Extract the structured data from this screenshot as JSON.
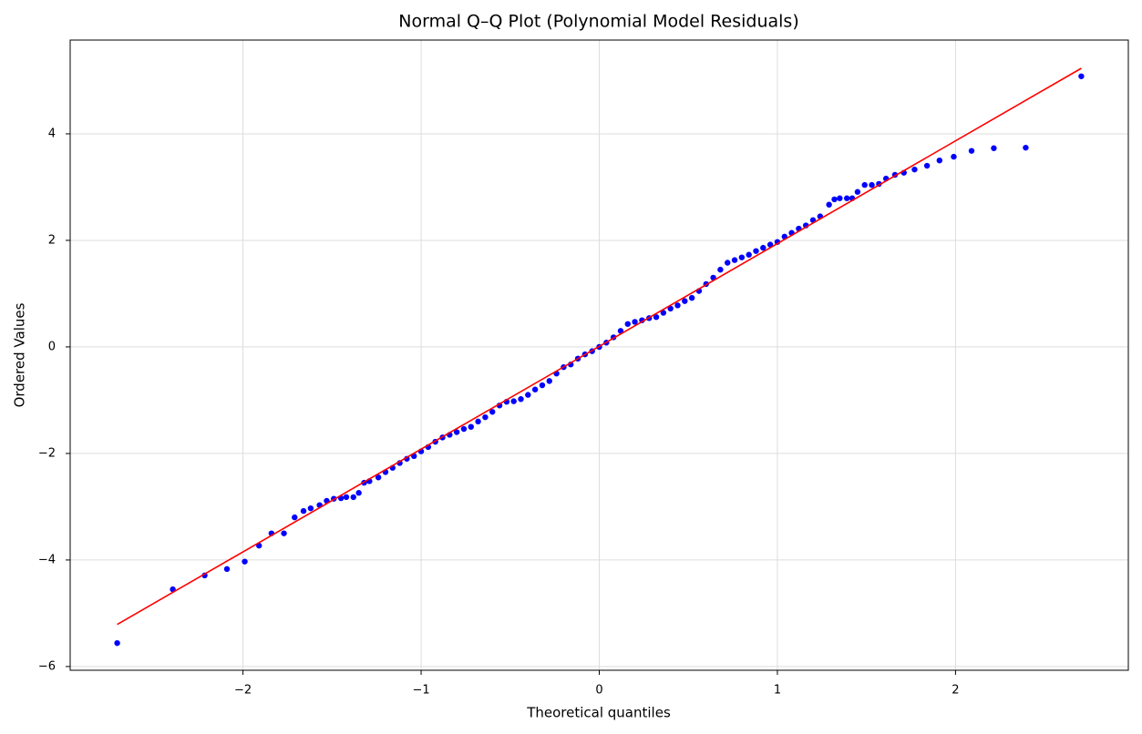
{
  "chart_data": {
    "type": "scatter",
    "title": "Normal Q–Q Plot (Polynomial Model Residuals)",
    "xlabel": "Theoretical quantiles",
    "ylabel": "Ordered Values",
    "color": "#0000ff",
    "x": [
      -2.706,
      -2.394,
      -2.215,
      -2.09,
      -1.99,
      -1.91,
      -1.84,
      -1.77,
      -1.71,
      -1.66,
      -1.62,
      -1.57,
      -1.53,
      -1.49,
      -1.45,
      -1.42,
      -1.38,
      -1.35,
      -1.32,
      -1.29,
      -1.24,
      -1.2,
      -1.16,
      -1.12,
      -1.08,
      -1.04,
      -1.0,
      -0.96,
      -0.92,
      -0.88,
      -0.84,
      -0.8,
      -0.76,
      -0.72,
      -0.68,
      -0.64,
      -0.6,
      -0.56,
      -0.52,
      -0.48,
      -0.44,
      -0.4,
      -0.36,
      -0.32,
      -0.28,
      -0.24,
      -0.2,
      -0.16,
      -0.12,
      -0.08,
      -0.04,
      0,
      0.04,
      0.08,
      0.12,
      0.16,
      0.2,
      0.24,
      0.28,
      0.32,
      0.36,
      0.4,
      0.44,
      0.48,
      0.52,
      0.56,
      0.6,
      0.64,
      0.68,
      0.72,
      0.76,
      0.8,
      0.84,
      0.88,
      0.92,
      0.96,
      1.0,
      1.04,
      1.08,
      1.12,
      1.16,
      1.2,
      1.24,
      1.29,
      1.32,
      1.35,
      1.39,
      1.42,
      1.45,
      1.49,
      1.53,
      1.57,
      1.61,
      1.66,
      1.71,
      1.77,
      1.84,
      1.91,
      1.99,
      2.09,
      2.215,
      2.394,
      2.706
    ],
    "values": [
      -5.56,
      -4.55,
      -4.29,
      -4.17,
      -4.03,
      -3.73,
      -3.5,
      -3.5,
      -3.2,
      -3.08,
      -3.03,
      -2.97,
      -2.89,
      -2.85,
      -2.84,
      -2.82,
      -2.82,
      -2.74,
      -2.55,
      -2.52,
      -2.45,
      -2.35,
      -2.27,
      -2.18,
      -2.1,
      -2.05,
      -1.96,
      -1.88,
      -1.78,
      -1.7,
      -1.65,
      -1.6,
      -1.54,
      -1.5,
      -1.4,
      -1.32,
      -1.22,
      -1.1,
      -1.03,
      -1.02,
      -0.98,
      -0.9,
      -0.8,
      -0.72,
      -0.64,
      -0.5,
      -0.38,
      -0.33,
      -0.22,
      -0.14,
      -0.08,
      0,
      0.08,
      0.18,
      0.3,
      0.43,
      0.47,
      0.5,
      0.54,
      0.56,
      0.64,
      0.72,
      0.78,
      0.86,
      0.92,
      1.05,
      1.18,
      1.3,
      1.45,
      1.58,
      1.63,
      1.68,
      1.73,
      1.8,
      1.86,
      1.92,
      1.97,
      2.07,
      2.14,
      2.22,
      2.28,
      2.38,
      2.45,
      2.67,
      2.77,
      2.79,
      2.79,
      2.79,
      2.91,
      3.04,
      3.04,
      3.06,
      3.16,
      3.23,
      3.27,
      3.33,
      3.4,
      3.5,
      3.57,
      3.68,
      3.73,
      3.74,
      5.08
    ],
    "line": {
      "color": "#ff0000",
      "x": [
        -2.706,
        2.706
      ],
      "values": [
        -5.21,
        5.23
      ]
    },
    "xlim": [
      -2.97,
      2.97
    ],
    "ylim": [
      -6.07,
      5.76
    ],
    "xticks": [
      {
        "value": -2,
        "label": "−2"
      },
      {
        "value": -1,
        "label": "−1"
      },
      0,
      1,
      2
    ],
    "yticks": [
      {
        "value": -6,
        "label": "−6"
      },
      {
        "value": -4,
        "label": "−4"
      },
      {
        "value": -2,
        "label": "−2"
      },
      0,
      2,
      4
    ],
    "grid": true
  }
}
